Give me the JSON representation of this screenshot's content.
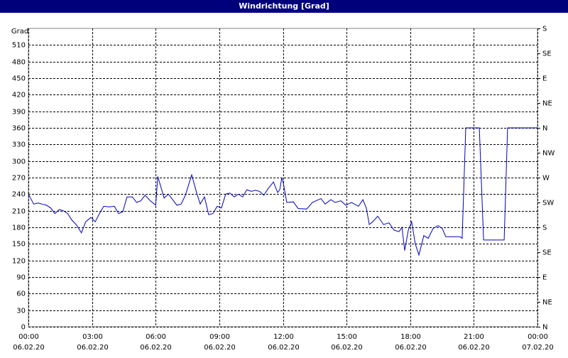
{
  "chart_data": {
    "type": "line",
    "title": "Windrichtung [Grad]",
    "y_label": "Grad",
    "x": [
      0,
      0.25,
      0.45,
      0.65,
      0.85,
      1.05,
      1.25,
      1.45,
      1.65,
      1.85,
      2.05,
      2.25,
      2.5,
      2.7,
      2.95,
      3.15,
      3.35,
      3.55,
      3.8,
      4.05,
      4.25,
      4.45,
      4.65,
      4.9,
      5.1,
      5.3,
      5.5,
      5.75,
      6.0,
      6.1,
      6.4,
      6.6,
      6.8,
      7.0,
      7.2,
      7.4,
      7.7,
      7.95,
      8.1,
      8.3,
      8.5,
      8.7,
      8.9,
      9.1,
      9.3,
      9.5,
      9.7,
      9.9,
      10.1,
      10.3,
      10.5,
      10.7,
      10.9,
      11.1,
      11.3,
      11.55,
      11.75,
      11.85,
      11.95,
      12.02,
      12.18,
      12.49,
      12.72,
      13.12,
      13.39,
      13.79,
      13.99,
      14.26,
      14.46,
      14.73,
      14.96,
      15.23,
      15.56,
      15.77,
      15.93,
      16.07,
      16.23,
      16.47,
      16.74,
      17.0,
      17.24,
      17.47,
      17.61,
      17.74,
      17.91,
      18.07,
      18.24,
      18.41,
      18.64,
      18.85,
      19.08,
      19.31,
      19.51,
      19.68,
      20.35,
      20.45,
      20.62,
      21.26,
      21.46,
      22.43,
      22.59,
      24.0
    ],
    "series": [
      {
        "name": "Windrichtung",
        "color": "#0000c0",
        "values": [
          240,
          222,
          224,
          222,
          220,
          215,
          205,
          212,
          210,
          205,
          193,
          185,
          170,
          190,
          198,
          190,
          205,
          218,
          217,
          218,
          205,
          208,
          235,
          235,
          225,
          228,
          238,
          228,
          220,
          272,
          233,
          240,
          230,
          220,
          222,
          238,
          275,
          240,
          222,
          235,
          203,
          205,
          218,
          215,
          240,
          242,
          235,
          240,
          235,
          248,
          245,
          247,
          245,
          238,
          250,
          262,
          243,
          248,
          270,
          260,
          225,
          226,
          214,
          213,
          225,
          232,
          222,
          230,
          225,
          228,
          220,
          225,
          218,
          230,
          215,
          185,
          190,
          200,
          185,
          188,
          175,
          172,
          180,
          138,
          175,
          190,
          150,
          130,
          165,
          160,
          178,
          183,
          178,
          163,
          163,
          160,
          360,
          360,
          157,
          157,
          360,
          360
        ]
      }
    ],
    "xlim": [
      0,
      24
    ],
    "xticks": [
      {
        "value": 0,
        "label": "00:00",
        "date": "06.02.20"
      },
      {
        "value": 3,
        "label": "03:00",
        "date": "06.02.20"
      },
      {
        "value": 6,
        "label": "06:00",
        "date": "06.02.20"
      },
      {
        "value": 9,
        "label": "09:00",
        "date": "06.02.20"
      },
      {
        "value": 12,
        "label": "12:00",
        "date": "06.02.20"
      },
      {
        "value": 15,
        "label": "15:00",
        "date": "06.02.20"
      },
      {
        "value": 18,
        "label": "18:00",
        "date": "06.02.20"
      },
      {
        "value": 21,
        "label": "21:00",
        "date": "06.02.20"
      },
      {
        "value": 24,
        "label": "00:00",
        "date": "07.02.20"
      }
    ],
    "ylim": [
      0,
      540
    ],
    "yticks": [
      0,
      30,
      60,
      90,
      120,
      150,
      180,
      210,
      240,
      270,
      300,
      330,
      360,
      390,
      420,
      450,
      480,
      510
    ],
    "y2lim": [
      0,
      540
    ],
    "y2ticks": [
      {
        "value": 0,
        "label": "N"
      },
      {
        "value": 45,
        "label": "NE"
      },
      {
        "value": 90,
        "label": "E"
      },
      {
        "value": 135,
        "label": "SE"
      },
      {
        "value": 180,
        "label": "S"
      },
      {
        "value": 225,
        "label": "SW"
      },
      {
        "value": 270,
        "label": "W"
      },
      {
        "value": 315,
        "label": "NW"
      },
      {
        "value": 360,
        "label": "N"
      },
      {
        "value": 405,
        "label": "NE"
      },
      {
        "value": 450,
        "label": "E"
      },
      {
        "value": 495,
        "label": "SE"
      },
      {
        "value": 540,
        "label": "S"
      }
    ],
    "grid": true
  }
}
